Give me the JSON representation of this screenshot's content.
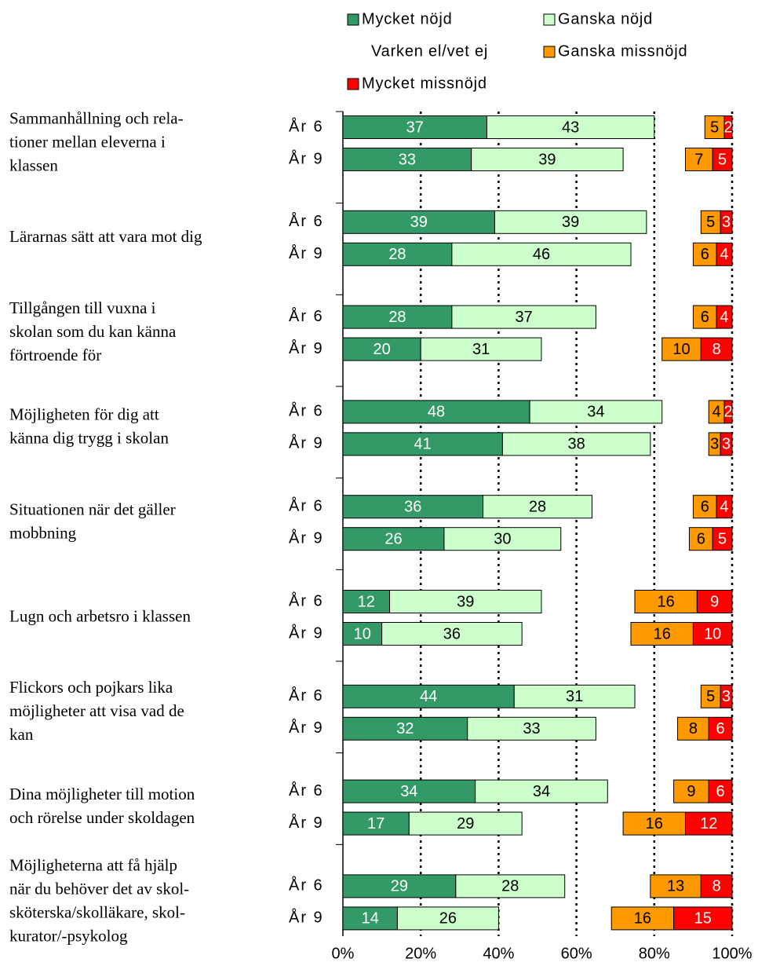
{
  "chart_data": {
    "type": "stacked_barh",
    "groups": [
      [
        "Sammanhållning och rela-",
        "tioner mellan eleverna i",
        "klassen"
      ],
      [
        "Lärarnas sätt att vara mot dig"
      ],
      [
        "Tillgången till vuxna i",
        "skolan som du kan känna",
        "förtroende för"
      ],
      [
        "Möjligheten för dig att",
        "känna dig trygg i skolan"
      ],
      [
        "Situationen när det gäller",
        "mobbning"
      ],
      [
        "Lugn och arbetsro i klassen"
      ],
      [
        "Flickors och pojkars lika",
        "möjligheter att visa vad de",
        "kan"
      ],
      [
        "Dina möjligheter till motion",
        "och rörelse under skoldagen"
      ],
      [
        "Möjligheterna att få hjälp",
        "när du behöver det av skol-",
        "sköterska/skolläkare, skol-",
        "kurator/-psykolog"
      ]
    ],
    "categories": [
      "År 6",
      "År 9",
      "År 6",
      "År 9",
      "År 6",
      "År 9",
      "År 6",
      "År 9",
      "År 6",
      "År 9",
      "År 6",
      "År 9",
      "År 6",
      "År 9",
      "År 6",
      "År 9",
      "År 6",
      "År 9"
    ],
    "series": [
      {
        "name": "Mycket nöjd",
        "color": "#339966",
        "label_color": "#ffffff",
        "values": [
          37,
          33,
          39,
          28,
          28,
          20,
          48,
          41,
          36,
          26,
          12,
          10,
          44,
          32,
          34,
          17,
          29,
          14
        ]
      },
      {
        "name": "Ganska nöjd",
        "color": "#ccffcc",
        "label_color": "#000000",
        "values": [
          43,
          39,
          39,
          46,
          37,
          31,
          34,
          38,
          28,
          30,
          39,
          36,
          31,
          33,
          34,
          29,
          28,
          26
        ]
      },
      {
        "name": "Varken el/vet ej",
        "color": null,
        "label_color": null,
        "values": [
          13,
          16,
          14,
          16,
          25,
          31,
          12,
          15,
          26,
          33,
          24,
          28,
          17,
          21,
          17,
          26,
          22,
          29
        ]
      },
      {
        "name": "Ganska missnöjd",
        "color": "#ff9900",
        "label_color": "#000000",
        "values": [
          5,
          7,
          5,
          6,
          6,
          10,
          4,
          3,
          6,
          6,
          16,
          16,
          5,
          8,
          9,
          16,
          13,
          16
        ]
      },
      {
        "name": "Mycket missnöjd",
        "color": "#ff0000",
        "label_color": "#ffffff",
        "values": [
          2,
          5,
          3,
          4,
          4,
          8,
          2,
          3,
          4,
          5,
          9,
          10,
          3,
          6,
          6,
          12,
          8,
          15
        ]
      }
    ],
    "labeled_series": [
      0,
      1,
      3,
      4
    ],
    "xlim": [
      0,
      100
    ],
    "xticks": [
      {
        "value": 0,
        "label": "0%"
      },
      {
        "value": 20,
        "label": "20%"
      },
      {
        "value": 40,
        "label": "40%"
      },
      {
        "value": 60,
        "label": "60%"
      },
      {
        "value": 80,
        "label": "80%"
      },
      {
        "value": 100,
        "label": "100%"
      }
    ],
    "grid": true,
    "legend": "top"
  }
}
